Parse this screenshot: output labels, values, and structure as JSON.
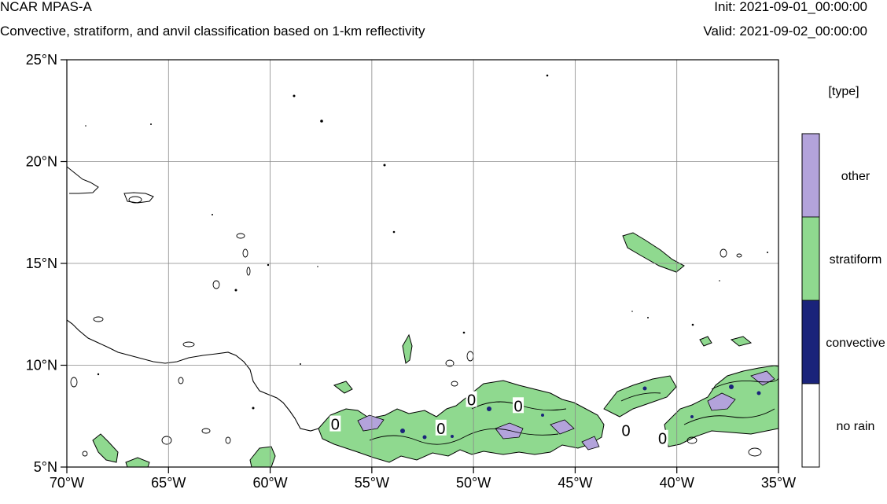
{
  "header": {
    "model_title": "NCAR MPAS-A",
    "subtitle": "Convective, stratiform, and anvil classification based on 1-km reflectivity",
    "init_label": "Init: 2021-09-01_00:00:00",
    "valid_label": "Valid: 2021-09-02_00:00:00"
  },
  "map": {
    "lon_range": [
      -70,
      -35
    ],
    "lat_range": [
      5,
      25
    ],
    "lon_ticks": [
      {
        "lon": -70,
        "label": "70°W"
      },
      {
        "lon": -65,
        "label": "65°W"
      },
      {
        "lon": -60,
        "label": "60°W"
      },
      {
        "lon": -55,
        "label": "55°W"
      },
      {
        "lon": -50,
        "label": "50°W"
      },
      {
        "lon": -45,
        "label": "45°W"
      },
      {
        "lon": -40,
        "label": "40°W"
      },
      {
        "lon": -35,
        "label": "35°W"
      }
    ],
    "lat_ticks": [
      {
        "lat": 5,
        "label": "5°N"
      },
      {
        "lat": 10,
        "label": "10°N"
      },
      {
        "lat": 15,
        "label": "15°N"
      },
      {
        "lat": 20,
        "label": "20°N"
      },
      {
        "lat": 25,
        "label": "25°N"
      }
    ],
    "gridlines": true,
    "contour_zero_labels": [
      {
        "lon": -56.8,
        "lat": 7.1,
        "text": "0"
      },
      {
        "lon": -51.6,
        "lat": 6.9,
        "text": "0"
      },
      {
        "lon": -50.1,
        "lat": 8.3,
        "text": "0"
      },
      {
        "lon": -47.8,
        "lat": 8.0,
        "text": "0"
      },
      {
        "lon": -42.5,
        "lat": 6.8,
        "text": "0"
      },
      {
        "lon": -40.7,
        "lat": 6.4,
        "text": "0"
      }
    ]
  },
  "colorbar": {
    "title": "[type]",
    "categories": [
      {
        "label": "other",
        "color": "#b3a3db"
      },
      {
        "label": "stratiform",
        "color": "#8fd98f"
      },
      {
        "label": "convective",
        "color": "#1a237a"
      },
      {
        "label": "no rain",
        "color": "#ffffff"
      }
    ]
  },
  "colors": {
    "other": "#b3a3db",
    "stratiform": "#8fd98f",
    "convective": "#1a237a",
    "no_rain": "#ffffff"
  }
}
